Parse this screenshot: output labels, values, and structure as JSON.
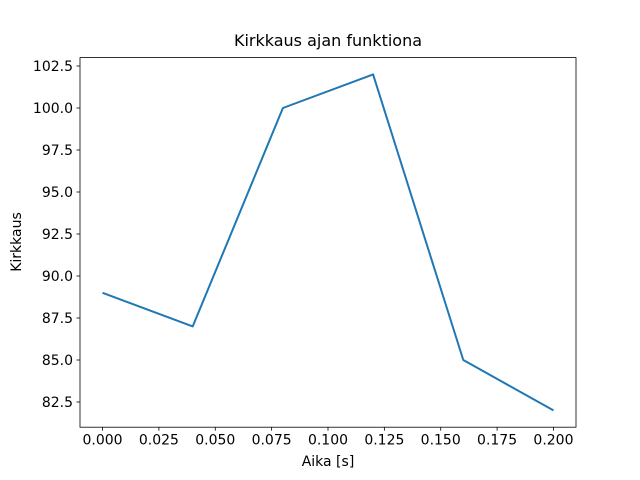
{
  "figure": {
    "background": "#ffffff"
  },
  "chart_data": {
    "type": "line",
    "title": "Kirkkaus ajan funktiona",
    "xlabel": "Aika [s]",
    "ylabel": "Kirkkaus",
    "x": [
      0.0,
      0.04,
      0.08,
      0.12,
      0.16,
      0.2
    ],
    "y": [
      89,
      87,
      100,
      102,
      85,
      82
    ],
    "xlim": [
      -0.01,
      0.21
    ],
    "ylim": [
      81,
      103
    ],
    "xticks": [
      0.0,
      0.025,
      0.05,
      0.075,
      0.1,
      0.125,
      0.15,
      0.175,
      0.2
    ],
    "xtick_labels": [
      "0.000",
      "0.025",
      "0.050",
      "0.075",
      "0.100",
      "0.125",
      "0.150",
      "0.175",
      "0.200"
    ],
    "yticks": [
      82.5,
      85.0,
      87.5,
      90.0,
      92.5,
      95.0,
      97.5,
      100.0,
      102.5
    ],
    "ytick_labels": [
      "82.5",
      "85.0",
      "87.5",
      "90.0",
      "92.5",
      "95.0",
      "97.5",
      "100.0",
      "102.5"
    ],
    "line_color": "#1f77b4",
    "axis_color": "#000000",
    "grid": false,
    "legend": "none"
  }
}
